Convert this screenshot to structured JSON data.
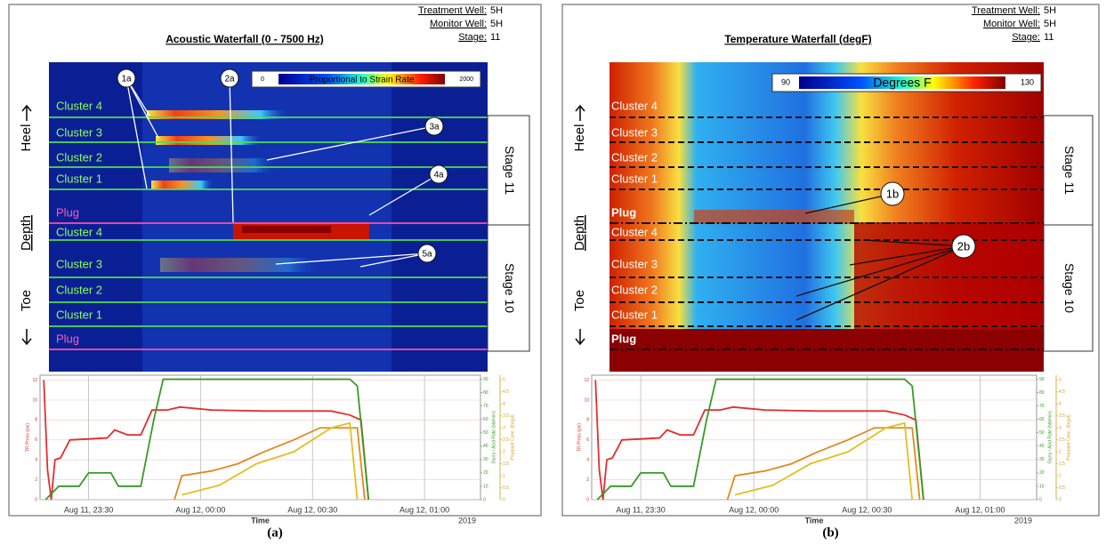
{
  "panels": [
    {
      "caption": "(a)",
      "title": "Acoustic Waterfall (0 - 7500 Hz)",
      "info": [
        {
          "label": "Treatment Well:",
          "value": "5H"
        },
        {
          "label": "Monitor Well:",
          "value": "5H"
        },
        {
          "label": "Stage:",
          "value": "11"
        }
      ],
      "colorbar": {
        "min": 0,
        "max": 2000,
        "label": "Proportional to Strain Rate"
      },
      "depth_labels": [
        "Heel",
        "Depth",
        "Toe"
      ],
      "zones": [
        "Cluster 4",
        "Cluster 3",
        "Cluster 2",
        "Cluster 1",
        "Plug",
        "Cluster 4",
        "Cluster 3",
        "Cluster 2",
        "Cluster 1",
        "Plug"
      ],
      "stages": [
        "Stage 11",
        "Stage 10"
      ],
      "callouts": [
        "1a",
        "2a",
        "3a",
        "4a",
        "5a"
      ],
      "chart_data": {
        "type": "line",
        "xlabel": "Time",
        "year": "2019",
        "ylabel": "TR Press (psi)",
        "y2label": "Slurry / Acid Rate (bbl/min)",
        "y3label": "Proppant Conc. (lb/gal)",
        "xlim": [
          -13,
          105
        ],
        "xticks": [
          {
            "value": 0,
            "label": "Aug 11, 23:30"
          },
          {
            "value": 30,
            "label": "Aug 12, 00:00"
          },
          {
            "value": 60,
            "label": "Aug 12, 00:30"
          },
          {
            "value": 90,
            "label": "Aug 12, 01:00"
          }
        ],
        "ylim": [
          0,
          12.5
        ],
        "yticks": [
          0,
          2,
          4,
          6,
          8,
          10,
          12
        ],
        "y2lim": [
          0,
          93
        ],
        "y2ticks": [
          0,
          10,
          20,
          30,
          40,
          50,
          60,
          70,
          80,
          90
        ],
        "y3lim": [
          0,
          5.2
        ],
        "y3ticks": [
          0,
          0.5,
          1,
          1.5,
          2,
          2.5,
          3,
          3.5,
          4,
          4.5,
          5
        ],
        "series": [
          {
            "color": "#e03030",
            "axis": "y",
            "x": [
              -12,
              -11,
              -10,
              -9,
              -7.5,
              -5,
              5,
              7,
              10.5,
              14,
              17,
              21,
              24.5,
              33,
              47,
              65,
              70,
              73,
              75
            ],
            "values": [
              12,
              3,
              0,
              4,
              4.2,
              6,
              6.2,
              7,
              6.5,
              6.5,
              9,
              9,
              9.3,
              9,
              8.9,
              8.9,
              8.5,
              8,
              0
            ]
          },
          {
            "color": "#3a9a2a",
            "axis": "y2",
            "x": [
              -11.5,
              -8,
              -2.5,
              0,
              6,
              8,
              14,
              17.5,
              20,
              70,
              72,
              75
            ],
            "values": [
              0,
              10,
              10,
              20,
              20,
              10,
              10,
              60,
              90,
              90,
              85,
              0
            ]
          },
          {
            "color": "#e08a20",
            "axis": "y3",
            "x": [
              23,
              25,
              33,
              40,
              47,
              55,
              62,
              72,
              74
            ],
            "values": [
              0,
              1,
              1.2,
              1.5,
              2,
              2.5,
              3,
              3,
              0
            ]
          },
          {
            "color": "#e0c020",
            "axis": "y3",
            "x": [
              25,
              35,
              45,
              55,
              65,
              70,
              72
            ],
            "values": [
              0.2,
              0.6,
              1.5,
              2,
              3,
              3.2,
              0
            ]
          }
        ]
      }
    },
    {
      "caption": "(b)",
      "title": "Temperature Waterfall (degF)",
      "info": [
        {
          "label": "Treatment Well:",
          "value": "5H"
        },
        {
          "label": "Monitor Well:",
          "value": "5H"
        },
        {
          "label": "Stage:",
          "value": "11"
        }
      ],
      "colorbar": {
        "min": 90,
        "max": 130,
        "label": "Degrees F"
      },
      "depth_labels": [
        "Heel",
        "Depth",
        "Toe"
      ],
      "zones": [
        "Cluster 4",
        "Cluster 3",
        "Cluster 2",
        "Cluster 1",
        "Plug",
        "Cluster 4",
        "Cluster 3",
        "Cluster 2",
        "Cluster 1",
        "Plug"
      ],
      "stages": [
        "Stage 11",
        "Stage 10"
      ],
      "callouts": [
        "1b",
        "2b"
      ],
      "chart_data": {
        "type": "line",
        "xlabel": "Time",
        "year": "2019",
        "ylabel": "TR Press (psi)",
        "y2label": "Slurry / Acid Rate (bbl/min)",
        "y3label": "Proppant Conc. (lb/gal)",
        "xlim": [
          -13,
          105
        ],
        "xticks": [
          {
            "value": 0,
            "label": "Aug 11, 23:30"
          },
          {
            "value": 30,
            "label": "Aug 12, 00:00"
          },
          {
            "value": 60,
            "label": "Aug 12, 00:30"
          },
          {
            "value": 90,
            "label": "Aug 12, 01:00"
          }
        ],
        "ylim": [
          0,
          12.5
        ],
        "yticks": [
          0,
          2,
          4,
          6,
          8,
          10,
          12
        ],
        "y2lim": [
          0,
          93
        ],
        "y2ticks": [
          0,
          10,
          20,
          30,
          40,
          50,
          60,
          70,
          80,
          90
        ],
        "y3lim": [
          0,
          5.2
        ],
        "y3ticks": [
          0,
          0.5,
          1,
          1.5,
          2,
          2.5,
          3,
          3.5,
          4,
          4.5,
          5
        ],
        "series": [
          {
            "color": "#e03030",
            "axis": "y",
            "x": [
              -12,
              -11,
              -10,
              -9,
              -7.5,
              -5,
              5,
              7,
              10.5,
              14,
              17,
              21,
              24.5,
              33,
              47,
              65,
              70,
              73,
              75
            ],
            "values": [
              12,
              3,
              0,
              4,
              4.2,
              6,
              6.2,
              7,
              6.5,
              6.5,
              9,
              9,
              9.3,
              9,
              8.9,
              8.9,
              8.5,
              8,
              0
            ]
          },
          {
            "color": "#3a9a2a",
            "axis": "y2",
            "x": [
              -11.5,
              -8,
              -2.5,
              0,
              6,
              8,
              14,
              17.5,
              20,
              70,
              72,
              75
            ],
            "values": [
              0,
              10,
              10,
              20,
              20,
              10,
              10,
              60,
              90,
              90,
              85,
              0
            ]
          },
          {
            "color": "#e08a20",
            "axis": "y3",
            "x": [
              23,
              25,
              33,
              40,
              47,
              55,
              62,
              72,
              74
            ],
            "values": [
              0,
              1,
              1.2,
              1.5,
              2,
              2.5,
              3,
              3,
              0
            ]
          },
          {
            "color": "#e0c020",
            "axis": "y3",
            "x": [
              25,
              35,
              45,
              55,
              65,
              70,
              72
            ],
            "values": [
              0.2,
              0.6,
              1.5,
              2,
              3,
              3.2,
              0
            ]
          }
        ]
      }
    }
  ]
}
